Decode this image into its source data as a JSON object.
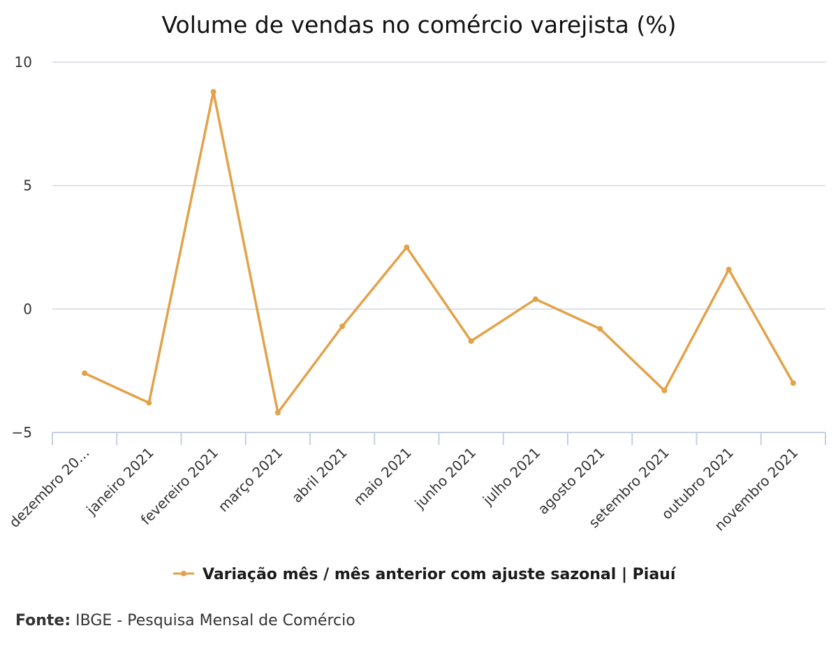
{
  "chart_data": {
    "type": "line",
    "title": "Volume de vendas no comércio varejista (%)",
    "categories": [
      "dezembro 20…",
      "janeiro 2021",
      "fevereiro 2021",
      "março 2021",
      "abril 2021",
      "maio 2021",
      "junho 2021",
      "julho 2021",
      "agosto 2021",
      "setembro 2021",
      "outubro 2021",
      "novembro 2021"
    ],
    "series": [
      {
        "name": "Variação mês / mês anterior com ajuste sazonal | Piauí",
        "color": "#e3a24a",
        "values": [
          -2.6,
          -3.8,
          8.8,
          -4.2,
          -0.7,
          2.5,
          -1.3,
          0.4,
          -0.8,
          -3.3,
          1.6,
          -3.0
        ]
      }
    ],
    "ylim": [
      -5,
      10
    ],
    "yticks": [
      10,
      5,
      0,
      -5
    ],
    "ytick_labels": [
      "10",
      "5",
      "0",
      "−5"
    ],
    "grid": true,
    "legend_position": "bottom-center"
  },
  "source": {
    "label": "Fonte:",
    "text": "IBGE - Pesquisa Mensal de Comércio"
  }
}
